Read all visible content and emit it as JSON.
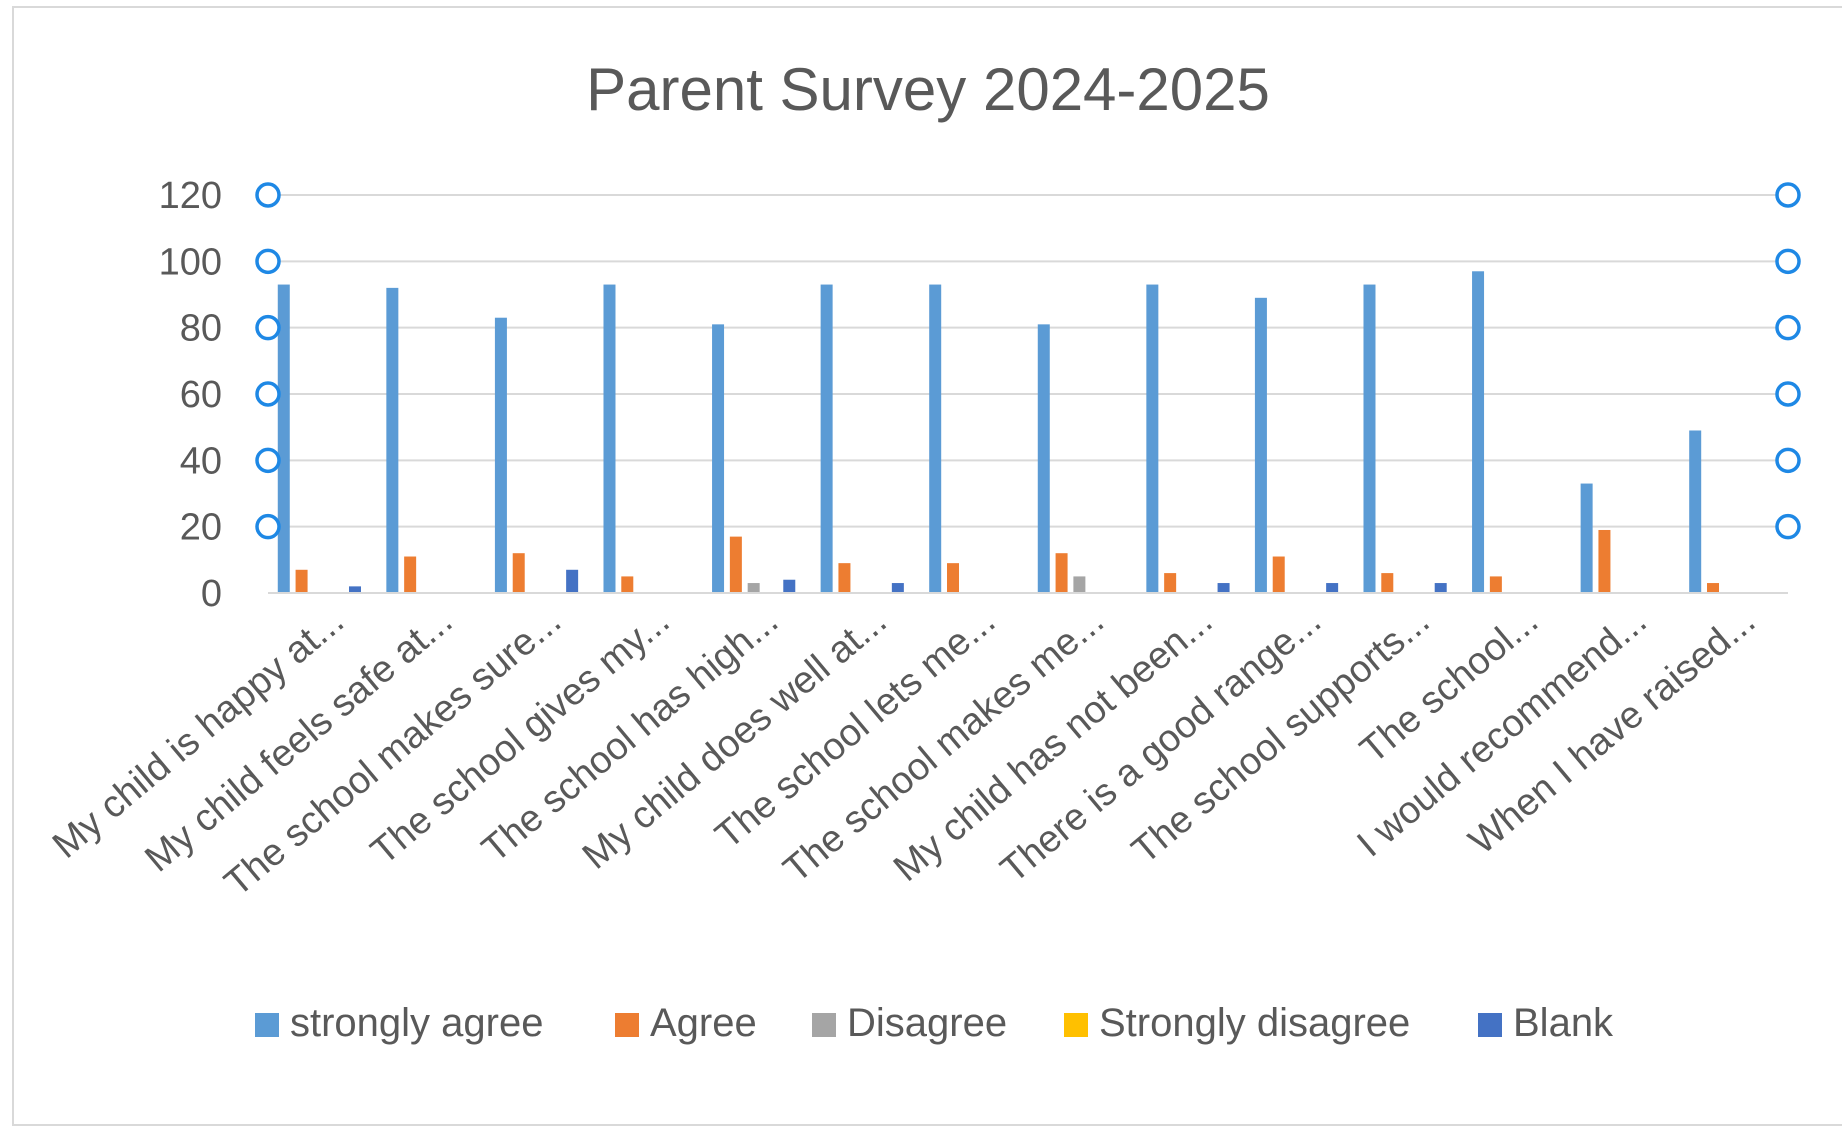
{
  "chart_data": {
    "type": "bar",
    "title": "Parent Survey 2024-2025",
    "xlabel": "",
    "ylabel": "",
    "ylim": [
      0,
      120
    ],
    "yticks": [
      0,
      20,
      40,
      60,
      80,
      100,
      120
    ],
    "grid": true,
    "legend_position": "bottom",
    "categories": [
      "My child is happy at...",
      "My child feels safe at...",
      "The school makes sure...",
      "The school gives my...",
      "The school has high...",
      "My child does well at...",
      "The school lets me...",
      "The school makes me...",
      "My child has not been...",
      "There is a good range...",
      "The school supports...",
      "The school...",
      "I would recommend...",
      "When I have raised..."
    ],
    "series": [
      {
        "name": "strongly agree",
        "color": "#5B9BD5",
        "values": [
          93,
          92,
          83,
          93,
          81,
          93,
          93,
          81,
          93,
          89,
          93,
          97,
          33,
          49
        ]
      },
      {
        "name": "Agree",
        "color": "#ED7D31",
        "values": [
          7,
          11,
          12,
          5,
          17,
          9,
          9,
          12,
          6,
          11,
          6,
          5,
          19,
          3
        ]
      },
      {
        "name": "Disagree",
        "color": "#A5A5A5",
        "values": [
          0,
          0,
          0,
          0,
          3,
          0,
          0,
          5,
          0,
          0,
          0,
          0,
          0,
          0
        ]
      },
      {
        "name": "Strongly disagree",
        "color": "#FFC000",
        "values": [
          0,
          0,
          0,
          0,
          0,
          0,
          0,
          0,
          0,
          0,
          0,
          0,
          0,
          0
        ]
      },
      {
        "name": "Blank",
        "color": "#4472C4",
        "values": [
          2,
          0,
          7,
          0,
          4,
          3,
          0,
          0,
          3,
          3,
          3,
          0,
          0,
          0
        ]
      }
    ],
    "axis_color": "#595959",
    "grid_color": "#d9d9d9",
    "selection_handle_color": "#1E88E5"
  }
}
